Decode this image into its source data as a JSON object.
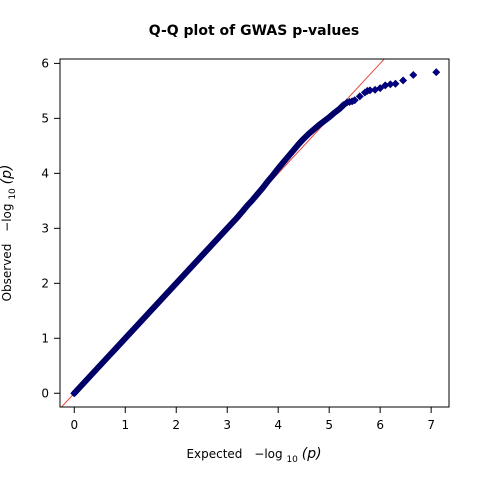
{
  "chart_data": {
    "type": "scatter",
    "title": "Q-Q plot of GWAS p-values",
    "xlabel": {
      "prefix": "Expected",
      "minus": "−log",
      "subscript": "10",
      "argument": "(p)"
    },
    "ylabel": {
      "prefix": "Observed",
      "minus": "−log",
      "subscript": "10",
      "argument": "(p)"
    },
    "xlim": [
      -0.28,
      7.35
    ],
    "ylim": [
      -0.25,
      6.08
    ],
    "x_ticks": [
      0,
      1,
      2,
      3,
      4,
      5,
      6,
      7
    ],
    "y_ticks": [
      0,
      1,
      2,
      3,
      4,
      5,
      6
    ],
    "grid": false,
    "reference_line": {
      "slope": 1,
      "intercept": 0,
      "color": "#e8433a"
    },
    "marker": {
      "shape": "diamond",
      "fill": "#00008b",
      "stroke": "#000066"
    },
    "series": [
      {
        "x": [
          0.0,
          0.1,
          0.2,
          0.3,
          0.4,
          0.5,
          0.6,
          0.7,
          0.8,
          0.9,
          1.0,
          1.1,
          1.2,
          1.3,
          1.4,
          1.5,
          1.6,
          1.7,
          1.8,
          1.9,
          2.0,
          2.1,
          2.2,
          2.3,
          2.4,
          2.5,
          2.6,
          2.7,
          2.8,
          2.9,
          3.0,
          3.1,
          3.2,
          3.3,
          3.4,
          3.5,
          3.6,
          3.7,
          3.8,
          3.9,
          4.0,
          4.1,
          4.2,
          4.3,
          4.4,
          4.5,
          4.6,
          4.7,
          4.8,
          4.9,
          5.0,
          5.1,
          5.2,
          5.3,
          5.35,
          5.4,
          5.45,
          5.5,
          5.6,
          5.7,
          5.75,
          5.8,
          5.9,
          6.0,
          6.1,
          6.2,
          6.3,
          6.45,
          6.65,
          7.1
        ],
        "y": [
          0.0,
          0.1,
          0.2,
          0.3,
          0.4,
          0.5,
          0.6,
          0.7,
          0.8,
          0.9,
          1.0,
          1.1,
          1.2,
          1.3,
          1.4,
          1.5,
          1.6,
          1.7,
          1.8,
          1.9,
          2.0,
          2.1,
          2.2,
          2.3,
          2.4,
          2.5,
          2.6,
          2.7,
          2.8,
          2.9,
          3.0,
          3.1,
          3.2,
          3.31,
          3.42,
          3.52,
          3.63,
          3.74,
          3.86,
          3.97,
          4.09,
          4.2,
          4.31,
          4.42,
          4.53,
          4.63,
          4.72,
          4.8,
          4.88,
          4.95,
          5.02,
          5.1,
          5.17,
          5.26,
          5.29,
          5.3,
          5.31,
          5.33,
          5.4,
          5.47,
          5.5,
          5.51,
          5.52,
          5.55,
          5.6,
          5.62,
          5.63,
          5.69,
          5.79,
          5.84
        ]
      }
    ]
  }
}
